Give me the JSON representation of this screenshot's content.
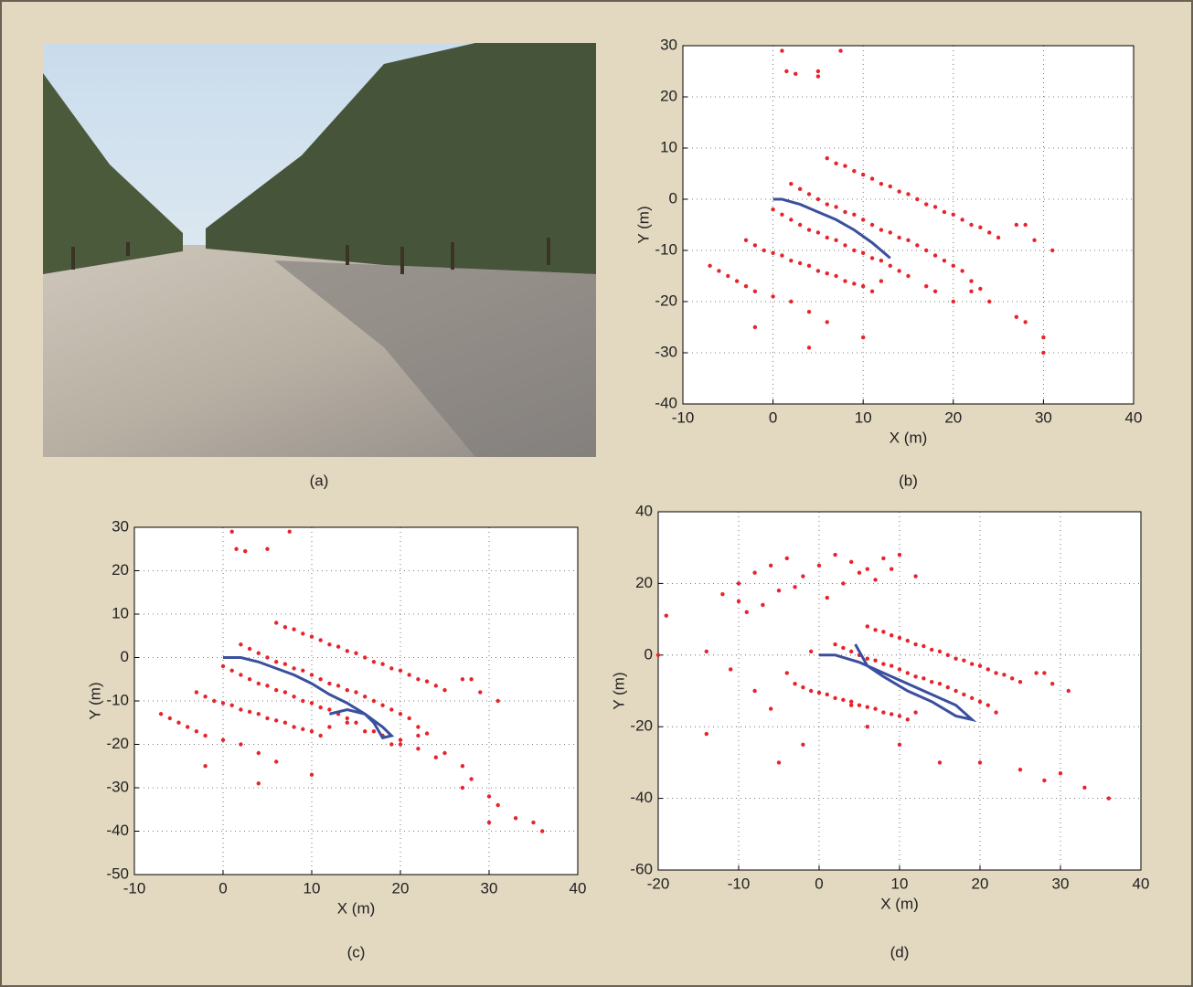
{
  "photo_caption": "(a)",
  "chart_data": [
    {
      "type": "scatter",
      "caption": "(b)",
      "x_label": "X (m)",
      "y_label": "Y (m)",
      "xlim": [
        -10,
        40
      ],
      "ylim": [
        -40,
        30
      ],
      "xticks": [
        -10,
        0,
        10,
        20,
        30,
        40
      ],
      "yticks": [
        -40,
        -30,
        -20,
        -10,
        0,
        10,
        20,
        30
      ],
      "grid": true,
      "series": [
        {
          "mode": "markers",
          "color": "#e8232a",
          "x": [
            6,
            7,
            8,
            9,
            10,
            11,
            12,
            13,
            14,
            15,
            16,
            17,
            18,
            19,
            20,
            21,
            22,
            23,
            24,
            25,
            27,
            28,
            29,
            31,
            2,
            3,
            4,
            5,
            6,
            7,
            8,
            9,
            10,
            11,
            12,
            13,
            14,
            15,
            16,
            17,
            18,
            19,
            20,
            21,
            22,
            22,
            23,
            20,
            0,
            1,
            2,
            3,
            4,
            5,
            6,
            7,
            8,
            9,
            10,
            11,
            12,
            13,
            14,
            15,
            17,
            18,
            -3,
            -2,
            -1,
            0,
            1,
            2,
            3,
            4,
            5,
            6,
            7,
            8,
            9,
            10,
            11,
            12,
            -7,
            -6,
            -5,
            -4,
            -3,
            -2,
            -2,
            0,
            2,
            4,
            6,
            10,
            4,
            27,
            28,
            30,
            30,
            24,
            1,
            1.5,
            2.5,
            5,
            5,
            7.5
          ],
          "values": [
            8,
            7,
            6.5,
            5.5,
            4.8,
            4,
            3,
            2.5,
            1.5,
            1,
            0,
            -1,
            -1.5,
            -2.5,
            -3,
            -4,
            -5,
            -5.5,
            -6.5,
            -7.5,
            -5,
            -5,
            -8,
            -10,
            3,
            2,
            1,
            0,
            -1,
            -1.5,
            -2.5,
            -3,
            -4,
            -5,
            -6,
            -6.5,
            -7.5,
            -8,
            -9,
            -10,
            -11,
            -12,
            -13,
            -14,
            -16,
            -18,
            -17.5,
            -20,
            -2,
            -3,
            -4,
            -5,
            -6,
            -6.5,
            -7.5,
            -8,
            -9,
            -10,
            -10.5,
            -11.5,
            -12,
            -13,
            -14,
            -15,
            -17,
            -18,
            -8,
            -9,
            -10,
            -10.5,
            -11,
            -12,
            -12.5,
            -13,
            -14,
            -14.5,
            -15,
            -16,
            -16.5,
            -17,
            -18,
            -16,
            -13,
            -14,
            -15,
            -16,
            -17,
            -18,
            -25,
            -19,
            -20,
            -22,
            -24,
            -27,
            -29,
            -23,
            -24,
            -27,
            -30,
            -20,
            29,
            25,
            24.5,
            25,
            24,
            29
          ]
        },
        {
          "mode": "line",
          "color": "#3a4f9e",
          "x": [
            0,
            1,
            2,
            3,
            5,
            7,
            9,
            11,
            13
          ],
          "values": [
            0,
            0,
            -0.5,
            -1,
            -2.5,
            -4,
            -6,
            -8.5,
            -11.5
          ]
        }
      ]
    },
    {
      "type": "scatter",
      "caption": "(c)",
      "x_label": "X (m)",
      "y_label": "Y (m)",
      "xlim": [
        -10,
        40
      ],
      "ylim": [
        -50,
        30
      ],
      "xticks": [
        -10,
        0,
        10,
        20,
        30,
        40
      ],
      "yticks": [
        -50,
        -40,
        -30,
        -20,
        -10,
        0,
        10,
        20,
        30
      ],
      "grid": true,
      "series": [
        {
          "mode": "markers",
          "color": "#e8232a",
          "x": [
            6,
            7,
            8,
            9,
            10,
            11,
            12,
            13,
            14,
            15,
            16,
            17,
            18,
            19,
            20,
            21,
            22,
            23,
            24,
            25,
            27,
            28,
            29,
            31,
            2,
            3,
            4,
            5,
            6,
            7,
            8,
            9,
            10,
            11,
            12,
            13,
            14,
            15,
            16,
            17,
            18,
            19,
            20,
            21,
            22,
            22,
            23,
            20,
            0,
            1,
            2,
            3,
            4,
            5,
            6,
            7,
            8,
            9,
            10,
            11,
            12,
            13,
            14,
            15,
            17,
            18,
            -3,
            -2,
            -1,
            0,
            1,
            2,
            3,
            4,
            5,
            6,
            7,
            8,
            9,
            10,
            11,
            12,
            -7,
            -6,
            -5,
            -4,
            -3,
            -2,
            -2,
            0,
            2,
            4,
            6,
            10,
            4,
            25,
            27,
            28,
            30,
            31,
            33,
            35,
            36,
            30,
            27,
            24,
            22,
            20,
            19,
            16,
            14,
            1,
            1.5,
            2.5,
            5,
            7.5
          ],
          "values": [
            8,
            7,
            6.5,
            5.5,
            4.8,
            4,
            3,
            2.5,
            1.5,
            1,
            0,
            -1,
            -1.5,
            -2.5,
            -3,
            -4,
            -5,
            -5.5,
            -6.5,
            -7.5,
            -5,
            -5,
            -8,
            -10,
            3,
            2,
            1,
            0,
            -1,
            -1.5,
            -2.5,
            -3,
            -4,
            -5,
            -6,
            -6.5,
            -7.5,
            -8,
            -9,
            -10,
            -11,
            -12,
            -13,
            -14,
            -16,
            -18,
            -17.5,
            -20,
            -2,
            -3,
            -4,
            -5,
            -6,
            -6.5,
            -7.5,
            -8,
            -9,
            -10,
            -10.5,
            -11.5,
            -12,
            -13,
            -14,
            -15,
            -17,
            -18,
            -8,
            -9,
            -10,
            -10.5,
            -11,
            -12,
            -12.5,
            -13,
            -14,
            -14.5,
            -15,
            -16,
            -16.5,
            -17,
            -18,
            -16,
            -13,
            -14,
            -15,
            -16,
            -17,
            -18,
            -25,
            -19,
            -20,
            -22,
            -24,
            -27,
            -29,
            -22,
            -25,
            -28,
            -32,
            -34,
            -37,
            -38,
            -40,
            -38,
            -30,
            -23,
            -21,
            -19,
            -20,
            -17,
            -15,
            29,
            25,
            24.5,
            25,
            29
          ]
        },
        {
          "mode": "line",
          "color": "#3a4f9e",
          "x": [
            0,
            2,
            4,
            6,
            8,
            10,
            12,
            14,
            16,
            18,
            19,
            18,
            17,
            16,
            14,
            12
          ],
          "values": [
            0,
            0,
            -1,
            -2.5,
            -4,
            -6,
            -8.5,
            -10.5,
            -13,
            -16,
            -18,
            -18.5,
            -15,
            -13,
            -12,
            -13
          ]
        }
      ]
    },
    {
      "type": "scatter",
      "caption": "(d)",
      "x_label": "X (m)",
      "y_label": "Y (m)",
      "xlim": [
        -20,
        40
      ],
      "ylim": [
        -60,
        40
      ],
      "xticks": [
        -20,
        -10,
        0,
        10,
        20,
        30,
        40
      ],
      "yticks": [
        -60,
        -40,
        -20,
        0,
        20,
        40
      ],
      "grid": true,
      "series": [
        {
          "mode": "markers",
          "color": "#e8232a",
          "x": [
            -20,
            -19,
            -14,
            -12,
            -10,
            -8,
            -6,
            -4,
            -2,
            0,
            2,
            4,
            6,
            8,
            10,
            12,
            -10,
            -5,
            3,
            7,
            -9,
            -7,
            -3,
            1,
            5,
            9,
            6,
            7,
            8,
            9,
            10,
            11,
            12,
            13,
            14,
            15,
            16,
            17,
            18,
            19,
            20,
            21,
            22,
            23,
            24,
            25,
            27,
            28,
            29,
            31,
            2,
            3,
            4,
            5,
            6,
            7,
            8,
            9,
            10,
            11,
            12,
            13,
            14,
            15,
            16,
            17,
            18,
            19,
            20,
            21,
            22,
            -3,
            -2,
            -1,
            0,
            1,
            2,
            3,
            4,
            5,
            6,
            7,
            8,
            9,
            10,
            11,
            12,
            -11,
            -8,
            -6,
            -2,
            -14,
            -5,
            10,
            15,
            20,
            25,
            28,
            30,
            33,
            36,
            6,
            -4,
            -1,
            4
          ],
          "values": [
            0,
            11,
            1,
            17,
            20,
            23,
            25,
            27,
            22,
            25,
            28,
            26,
            24,
            27,
            28,
            22,
            15,
            18,
            20,
            21,
            12,
            14,
            19,
            16,
            23,
            24,
            8,
            7,
            6.5,
            5.5,
            4.8,
            4,
            3,
            2.5,
            1.5,
            1,
            0,
            -1,
            -1.5,
            -2.5,
            -3,
            -4,
            -5,
            -5.5,
            -6.5,
            -7.5,
            -5,
            -5,
            -8,
            -10,
            3,
            2,
            1,
            0,
            -1,
            -1.5,
            -2.5,
            -3,
            -4,
            -5,
            -6,
            -6.5,
            -7.5,
            -8,
            -9,
            -10,
            -11,
            -12,
            -13,
            -14,
            -16,
            -8,
            -9,
            -10,
            -10.5,
            -11,
            -12,
            -12.5,
            -13,
            -14,
            -14.5,
            -15,
            -16,
            -16.5,
            -17,
            -18,
            -16,
            -4,
            -10,
            -15,
            -25,
            -22,
            -30,
            -25,
            -30,
            -30,
            -32,
            -35,
            -33,
            -37,
            -40,
            -20,
            -5,
            1,
            -14
          ]
        },
        {
          "mode": "line",
          "color": "#3a4f9e",
          "x": [
            0,
            2,
            5,
            8,
            11,
            14,
            17,
            19,
            17,
            14,
            11,
            8,
            6,
            5,
            4.5
          ],
          "values": [
            0,
            0,
            -2,
            -5,
            -8,
            -11,
            -14,
            -18,
            -17,
            -13,
            -10,
            -6,
            -3,
            1,
            3
          ]
        }
      ]
    }
  ]
}
